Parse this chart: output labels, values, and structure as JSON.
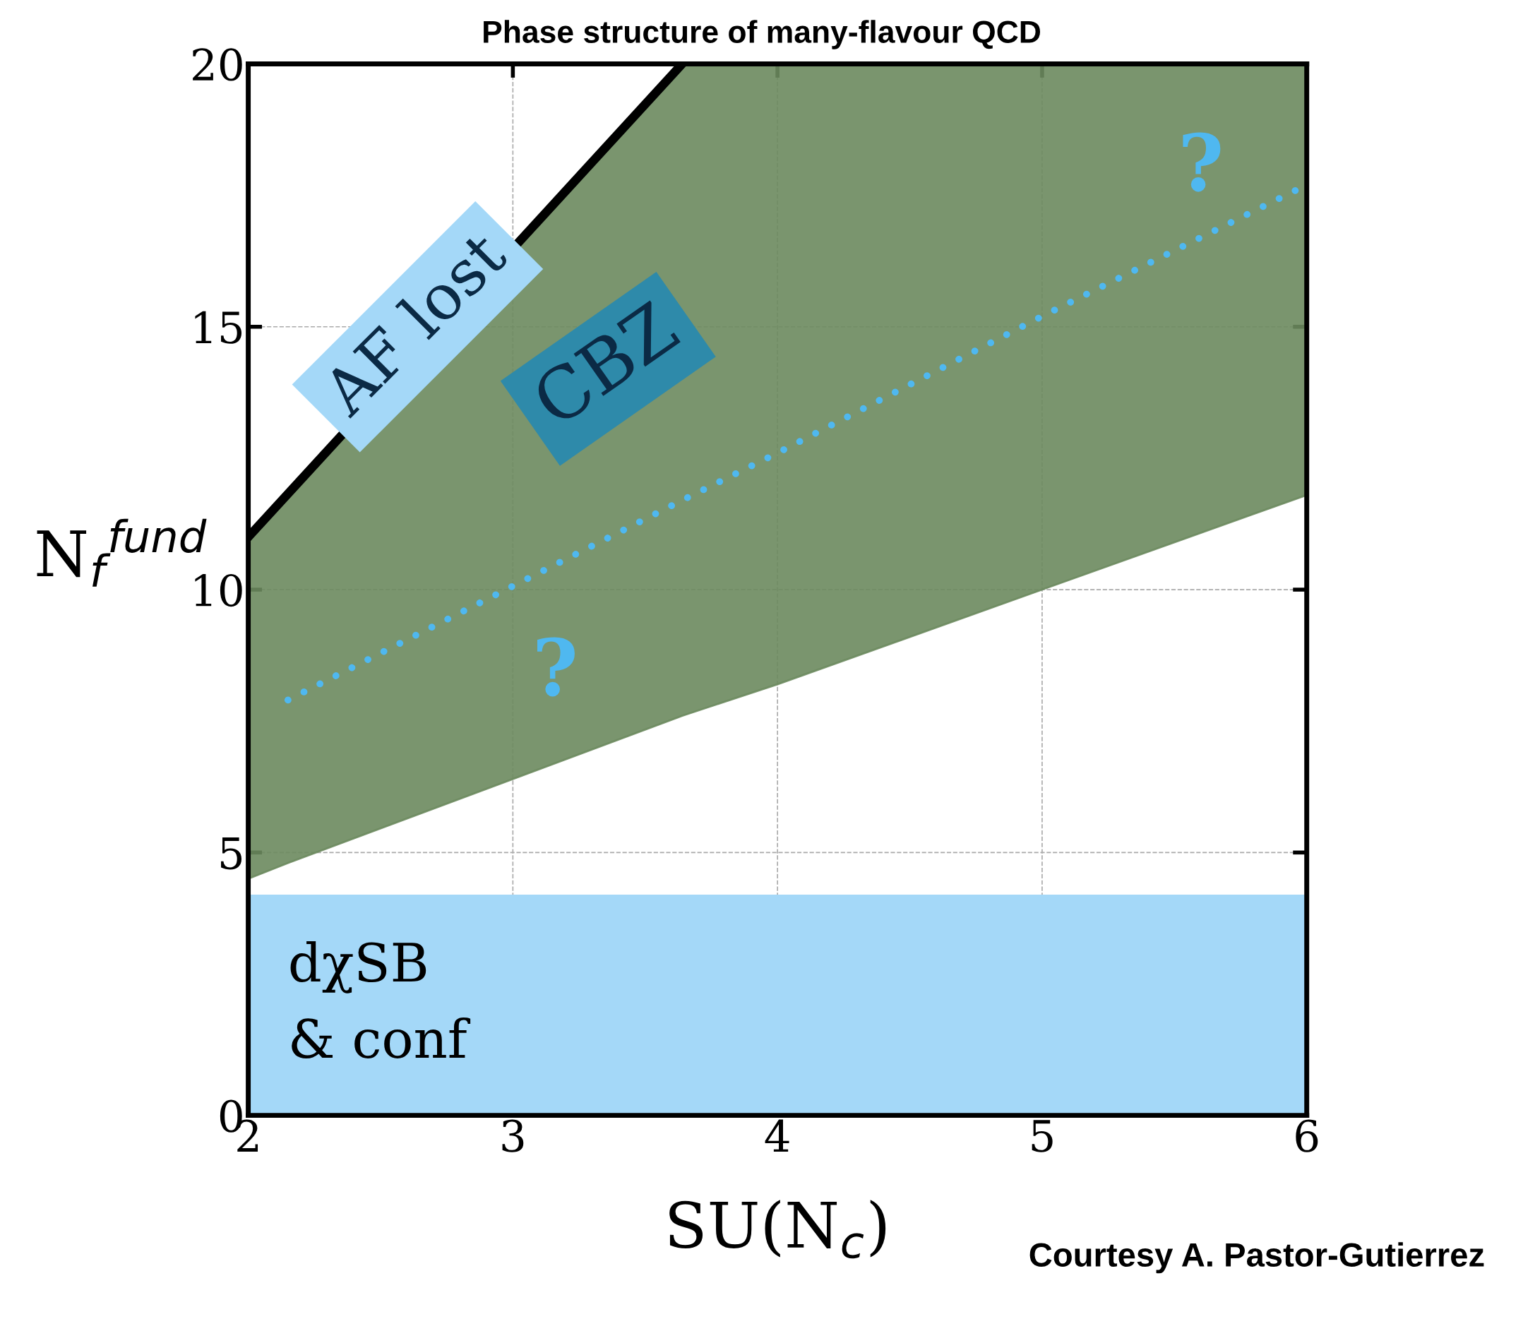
{
  "chart_data": {
    "type": "line",
    "title": "Phase structure of many-flavour QCD",
    "xlabel": "SU(N$_{c}$)",
    "ylabel": "N$_{f}$$^{fund}$",
    "xlim": [
      2,
      6
    ],
    "ylim": [
      0,
      20
    ],
    "xticks": [
      2,
      3,
      4,
      5,
      6
    ],
    "yticks": [
      0,
      5,
      10,
      15,
      20
    ],
    "grid": true,
    "series": [
      {
        "color": "#000000",
        "x": [
          2,
          3.64
        ],
        "values": [
          11,
          20
        ],
        "line_style": "solid"
      },
      {
        "color": "#4fb8f0",
        "x": [
          2,
          2.15,
          3.64,
          4,
          5,
          6
        ],
        "values": [
          null,
          7.9,
          11.7,
          12.6,
          15.2,
          17.7
        ],
        "lower": [
          4.5,
          4.8,
          7.6,
          8.2,
          10,
          11.8
        ],
        "upper": [
          11,
          11.8,
          20,
          20,
          20,
          20
        ],
        "line_style": "dotted"
      }
    ],
    "bands": [
      {
        "axis": "y",
        "from": 0,
        "to": 4.2,
        "label": "dχSB\n& conf",
        "color": "#a4d8f8"
      }
    ],
    "annotations": [
      "AF lost",
      "CBZ",
      "?",
      "?",
      "Courtesy A. Pastor-Gutierrez"
    ]
  }
}
